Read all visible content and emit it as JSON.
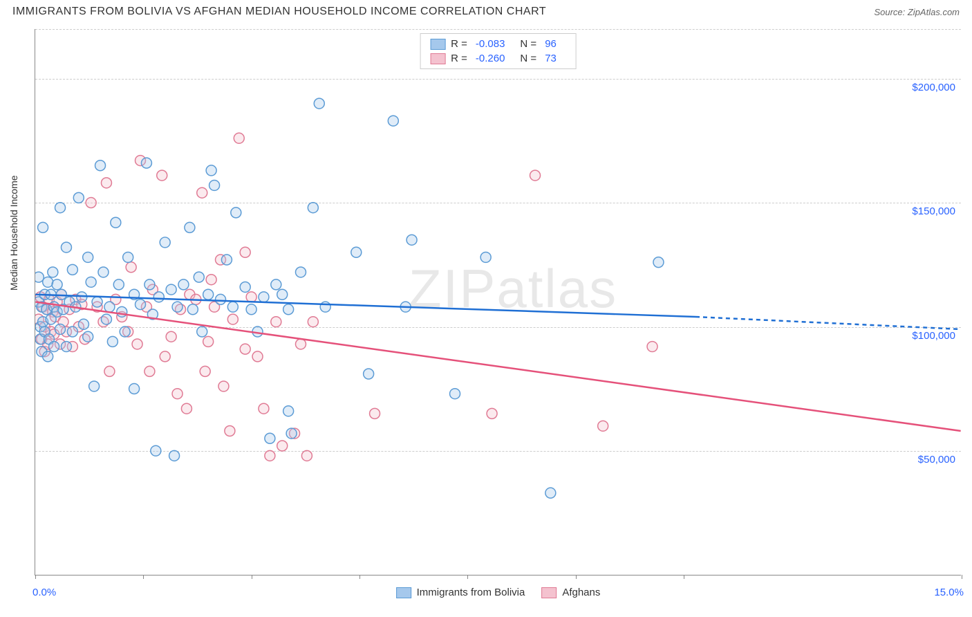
{
  "title": "IMMIGRANTS FROM BOLIVIA VS AFGHAN MEDIAN HOUSEHOLD INCOME CORRELATION CHART",
  "source": "Source: ZipAtlas.com",
  "watermark": "ZIPatlas",
  "ylabel": "Median Household Income",
  "chart": {
    "type": "scatter-with-regression",
    "xlim": [
      0,
      15
    ],
    "ylim": [
      0,
      220000
    ],
    "xtick_positions": [
      0,
      1.75,
      3.5,
      5.25,
      7.0,
      8.75,
      10.5,
      15.0
    ],
    "xtick_labels": {
      "0": "0.0%",
      "15": "15.0%"
    },
    "ytick_positions": [
      50000,
      100000,
      150000,
      200000
    ],
    "ytick_labels": [
      "$50,000",
      "$100,000",
      "$150,000",
      "$200,000"
    ],
    "gridlines_y": [
      50000,
      100000,
      150000,
      200000,
      220000
    ],
    "grid_color": "#cccccc",
    "background_color": "#ffffff",
    "axis_color": "#888888",
    "label_color": "#333333",
    "tick_label_color": "#2962ff",
    "tick_label_fontsize": 15,
    "title_fontsize": 16,
    "marker_radius": 7.5,
    "marker_fill_opacity": 0.35,
    "marker_stroke_width": 1.5,
    "regression_line_width": 2.5
  },
  "series": {
    "bolivia": {
      "label": "Immigrants from Bolivia",
      "color_fill": "#a5c8ec",
      "color_stroke": "#5b9bd5",
      "line_color": "#1f6fd4",
      "R": "-0.083",
      "N": "96",
      "regression": {
        "x1": 0,
        "y1": 113000,
        "x2": 10.7,
        "y2": 104000,
        "x2_dash": 15,
        "y2_dash": 99000
      },
      "points": [
        [
          0.05,
          110000
        ],
        [
          0.05,
          120000
        ],
        [
          0.08,
          100000
        ],
        [
          0.08,
          95000
        ],
        [
          0.1,
          108000
        ],
        [
          0.1,
          90000
        ],
        [
          0.12,
          140000
        ],
        [
          0.12,
          102000
        ],
        [
          0.15,
          98000
        ],
        [
          0.15,
          113000
        ],
        [
          0.18,
          107000
        ],
        [
          0.2,
          118000
        ],
        [
          0.2,
          88000
        ],
        [
          0.22,
          95000
        ],
        [
          0.25,
          113000
        ],
        [
          0.25,
          103000
        ],
        [
          0.28,
          122000
        ],
        [
          0.3,
          108000
        ],
        [
          0.3,
          92000
        ],
        [
          0.35,
          117000
        ],
        [
          0.35,
          106000
        ],
        [
          0.4,
          148000
        ],
        [
          0.4,
          99000
        ],
        [
          0.42,
          113000
        ],
        [
          0.45,
          107000
        ],
        [
          0.5,
          132000
        ],
        [
          0.5,
          92000
        ],
        [
          0.55,
          110000
        ],
        [
          0.6,
          123000
        ],
        [
          0.6,
          98000
        ],
        [
          0.65,
          108000
        ],
        [
          0.7,
          152000
        ],
        [
          0.75,
          112000
        ],
        [
          0.78,
          101000
        ],
        [
          0.85,
          128000
        ],
        [
          0.85,
          96000
        ],
        [
          0.9,
          118000
        ],
        [
          0.95,
          76000
        ],
        [
          1.0,
          110000
        ],
        [
          1.05,
          165000
        ],
        [
          1.1,
          122000
        ],
        [
          1.15,
          103000
        ],
        [
          1.2,
          108000
        ],
        [
          1.25,
          94000
        ],
        [
          1.3,
          142000
        ],
        [
          1.35,
          117000
        ],
        [
          1.4,
          106000
        ],
        [
          1.45,
          98000
        ],
        [
          1.5,
          128000
        ],
        [
          1.6,
          75000
        ],
        [
          1.6,
          113000
        ],
        [
          1.7,
          109000
        ],
        [
          1.8,
          166000
        ],
        [
          1.85,
          117000
        ],
        [
          1.9,
          105000
        ],
        [
          1.95,
          50000
        ],
        [
          2.0,
          112000
        ],
        [
          2.1,
          134000
        ],
        [
          2.2,
          115000
        ],
        [
          2.25,
          48000
        ],
        [
          2.3,
          108000
        ],
        [
          2.4,
          117000
        ],
        [
          2.5,
          140000
        ],
        [
          2.55,
          107000
        ],
        [
          2.65,
          120000
        ],
        [
          2.7,
          98000
        ],
        [
          2.8,
          113000
        ],
        [
          2.85,
          163000
        ],
        [
          2.9,
          157000
        ],
        [
          3.0,
          111000
        ],
        [
          3.1,
          127000
        ],
        [
          3.2,
          108000
        ],
        [
          3.25,
          146000
        ],
        [
          3.4,
          116000
        ],
        [
          3.5,
          107000
        ],
        [
          3.6,
          98000
        ],
        [
          3.7,
          112000
        ],
        [
          3.8,
          55000
        ],
        [
          3.9,
          117000
        ],
        [
          4.0,
          113000
        ],
        [
          4.1,
          66000
        ],
        [
          4.1,
          107000
        ],
        [
          4.15,
          57000
        ],
        [
          4.3,
          122000
        ],
        [
          4.5,
          148000
        ],
        [
          4.6,
          190000
        ],
        [
          4.7,
          108000
        ],
        [
          5.2,
          130000
        ],
        [
          5.4,
          81000
        ],
        [
          5.8,
          183000
        ],
        [
          6.0,
          108000
        ],
        [
          6.1,
          135000
        ],
        [
          6.8,
          73000
        ],
        [
          7.3,
          128000
        ],
        [
          8.35,
          33000
        ],
        [
          10.1,
          126000
        ]
      ]
    },
    "afghans": {
      "label": "Afghans",
      "color_fill": "#f4c2cf",
      "color_stroke": "#e07a94",
      "line_color": "#e5517a",
      "R": "-0.260",
      "N": "73",
      "regression": {
        "x1": 0,
        "y1": 110000,
        "x2": 15,
        "y2": 58000
      },
      "points": [
        [
          0.05,
          103000
        ],
        [
          0.08,
          112000
        ],
        [
          0.1,
          95000
        ],
        [
          0.12,
          108000
        ],
        [
          0.15,
          100000
        ],
        [
          0.15,
          90000
        ],
        [
          0.18,
          107000
        ],
        [
          0.2,
          93000
        ],
        [
          0.22,
          111000
        ],
        [
          0.25,
          98000
        ],
        [
          0.28,
          106000
        ],
        [
          0.3,
          97000
        ],
        [
          0.32,
          104000
        ],
        [
          0.35,
          110000
        ],
        [
          0.4,
          93000
        ],
        [
          0.42,
          113000
        ],
        [
          0.45,
          102000
        ],
        [
          0.5,
          98000
        ],
        [
          0.55,
          107000
        ],
        [
          0.6,
          92000
        ],
        [
          0.65,
          111000
        ],
        [
          0.7,
          100000
        ],
        [
          0.75,
          109000
        ],
        [
          0.8,
          95000
        ],
        [
          0.9,
          150000
        ],
        [
          1.0,
          108000
        ],
        [
          1.1,
          102000
        ],
        [
          1.15,
          158000
        ],
        [
          1.2,
          82000
        ],
        [
          1.3,
          111000
        ],
        [
          1.4,
          104000
        ],
        [
          1.5,
          98000
        ],
        [
          1.55,
          124000
        ],
        [
          1.65,
          93000
        ],
        [
          1.7,
          167000
        ],
        [
          1.8,
          108000
        ],
        [
          1.85,
          82000
        ],
        [
          1.9,
          115000
        ],
        [
          2.05,
          161000
        ],
        [
          2.1,
          88000
        ],
        [
          2.2,
          96000
        ],
        [
          2.3,
          73000
        ],
        [
          2.35,
          107000
        ],
        [
          2.45,
          67000
        ],
        [
          2.5,
          113000
        ],
        [
          2.6,
          111000
        ],
        [
          2.7,
          154000
        ],
        [
          2.75,
          82000
        ],
        [
          2.8,
          94000
        ],
        [
          2.85,
          119000
        ],
        [
          2.9,
          108000
        ],
        [
          3.0,
          127000
        ],
        [
          3.05,
          76000
        ],
        [
          3.15,
          58000
        ],
        [
          3.2,
          103000
        ],
        [
          3.3,
          176000
        ],
        [
          3.4,
          91000
        ],
        [
          3.4,
          130000
        ],
        [
          3.5,
          112000
        ],
        [
          3.6,
          88000
        ],
        [
          3.7,
          67000
        ],
        [
          3.8,
          48000
        ],
        [
          3.9,
          102000
        ],
        [
          4.0,
          52000
        ],
        [
          4.2,
          57000
        ],
        [
          4.3,
          93000
        ],
        [
          4.4,
          48000
        ],
        [
          4.5,
          102000
        ],
        [
          5.5,
          65000
        ],
        [
          7.4,
          65000
        ],
        [
          8.1,
          161000
        ],
        [
          9.2,
          60000
        ],
        [
          10.0,
          92000
        ]
      ]
    }
  }
}
